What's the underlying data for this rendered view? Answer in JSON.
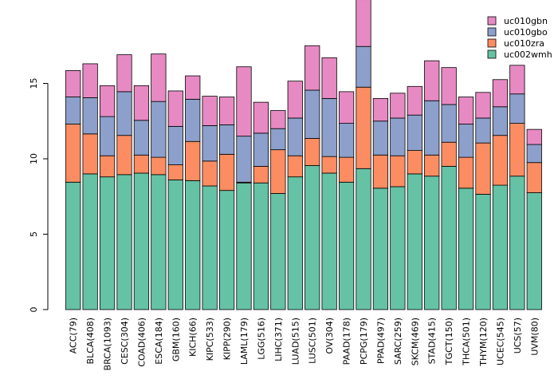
{
  "chart_data": {
    "type": "bar",
    "stacked": true,
    "title": "",
    "xlabel": "",
    "ylabel": "",
    "ylim": [
      0,
      20
    ],
    "yticks": [
      0,
      5,
      10,
      15
    ],
    "grid": false,
    "legend_position": "top-right",
    "categories": [
      "ACC(79)",
      "BLCA(408)",
      "BRCA(1093)",
      "CESC(304)",
      "COAD(406)",
      "ESCA(184)",
      "GBM(160)",
      "KICH(66)",
      "KIPC(533)",
      "KIPP(290)",
      "LAML(179)",
      "LGG(516)",
      "LIHC(371)",
      "LUAD(515)",
      "LUSC(501)",
      "OV(304)",
      "PAAD(178)",
      "PCPG(179)",
      "PPAD(497)",
      "SARC(259)",
      "SKCM(469)",
      "STAD(415)",
      "TGCT(150)",
      "THCA(501)",
      "THYM(120)",
      "UCEC(545)",
      "UCS(57)",
      "UVM(80)"
    ],
    "series": [
      {
        "name": "uc002wmh",
        "color": "#66c2a5",
        "values": [
          8.45,
          9.0,
          8.8,
          8.95,
          9.05,
          8.95,
          8.6,
          8.55,
          8.2,
          7.9,
          8.4,
          8.4,
          7.7,
          8.8,
          9.55,
          9.05,
          8.45,
          9.35,
          8.05,
          8.15,
          9.0,
          8.85,
          9.5,
          8.05,
          7.65,
          8.25,
          8.85,
          7.75
        ]
      },
      {
        "name": "uc010zra",
        "color": "#fc8d62",
        "values": [
          3.85,
          2.65,
          1.4,
          2.6,
          1.2,
          1.15,
          1.0,
          2.6,
          1.65,
          2.4,
          0.05,
          1.1,
          2.9,
          1.4,
          1.8,
          1.1,
          1.65,
          5.4,
          2.2,
          2.05,
          1.55,
          1.4,
          1.6,
          2.05,
          3.4,
          3.3,
          3.5,
          2.0
        ]
      },
      {
        "name": "uc010gbo",
        "color": "#8da0cb",
        "values": [
          1.8,
          2.4,
          2.6,
          2.9,
          2.3,
          3.7,
          2.55,
          2.8,
          2.35,
          1.95,
          3.05,
          2.2,
          1.4,
          2.5,
          3.2,
          3.85,
          2.25,
          2.7,
          2.25,
          2.5,
          2.35,
          3.6,
          2.5,
          2.2,
          1.65,
          1.9,
          1.95,
          1.2
        ]
      },
      {
        "name": "uc010gbn",
        "color": "#e78ac3",
        "values": [
          1.75,
          2.25,
          2.05,
          2.45,
          2.3,
          3.15,
          2.35,
          1.55,
          1.95,
          1.85,
          4.6,
          2.05,
          1.2,
          2.45,
          2.95,
          2.7,
          2.1,
          3.1,
          1.5,
          1.65,
          1.9,
          2.65,
          2.45,
          1.8,
          1.7,
          1.8,
          1.9,
          1.0
        ]
      }
    ]
  },
  "legend_order": [
    "uc010gbn",
    "uc010gbo",
    "uc010zra",
    "uc002wmh"
  ],
  "colors": {
    "bar_outline": "#000000",
    "axis": "#000000"
  }
}
